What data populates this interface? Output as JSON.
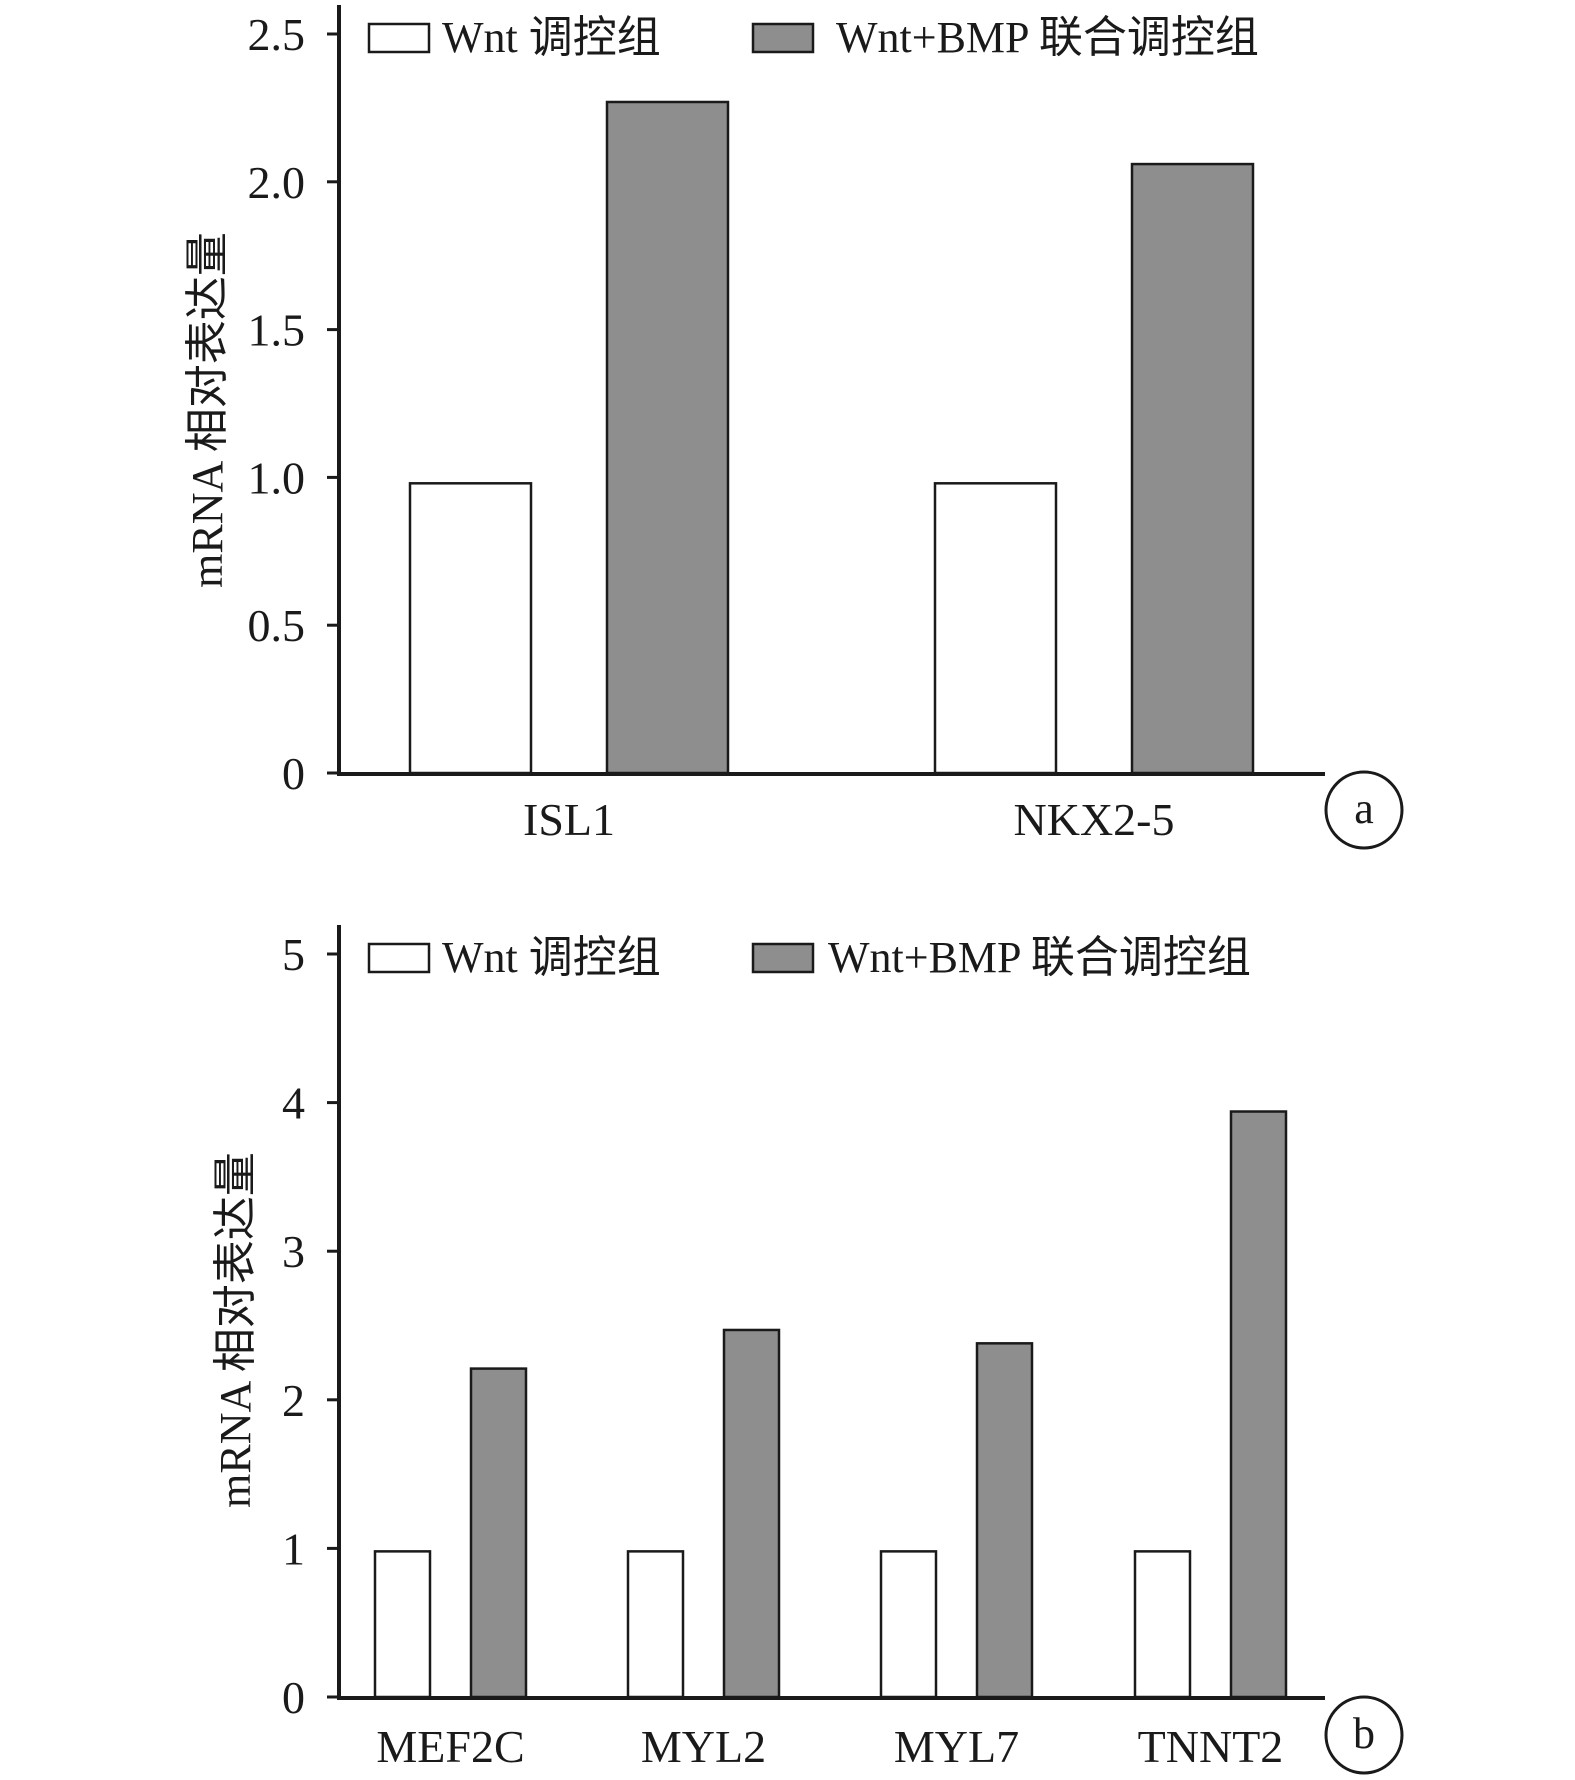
{
  "chart_data": [
    {
      "type": "bar",
      "panel_letter": "a",
      "categories": [
        "ISL1",
        "NKX2-5"
      ],
      "series": [
        {
          "name": "Wnt 调控组",
          "values": [
            0.98,
            0.98
          ],
          "color": "#ffffff"
        },
        {
          "name": "Wnt+BMP 联合调控组",
          "values": [
            2.27,
            2.06
          ],
          "color": "#8f8e8e"
        }
      ],
      "ylabel": "mRNA 相对表达量",
      "ylim": [
        0,
        2.5
      ],
      "yticks": [
        0,
        0.5,
        1.0,
        1.5,
        2.0,
        2.5
      ],
      "ytick_labels": [
        "0",
        "0.5",
        "1.0",
        "1.5",
        "2.0",
        "2.5"
      ],
      "legend": "top",
      "grid": false
    },
    {
      "type": "bar",
      "panel_letter": "b",
      "categories": [
        "MEF2C",
        "MYL2",
        "MYL7",
        "TNNT2"
      ],
      "series": [
        {
          "name": "Wnt 调控组",
          "values": [
            0.98,
            0.98,
            0.98,
            0.98
          ],
          "color": "#ffffff"
        },
        {
          "name": "Wnt+BMP 联合调控组",
          "values": [
            2.21,
            2.47,
            2.38,
            3.94
          ],
          "color": "#8f8e8e"
        }
      ],
      "ylabel": "mRNA 相对表达量",
      "ylim": [
        0,
        5
      ],
      "yticks": [
        0,
        1,
        2,
        3,
        4,
        5
      ],
      "ytick_labels": [
        "0",
        "1",
        "2",
        "3",
        "4",
        "5"
      ],
      "legend": "top",
      "grid": false
    }
  ]
}
